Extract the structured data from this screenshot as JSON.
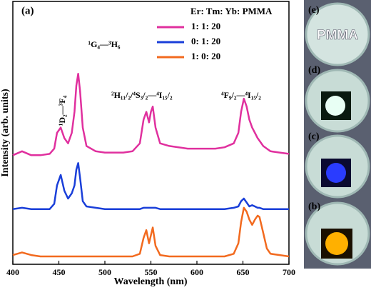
{
  "chart_data": {
    "type": "line",
    "panel_label": "(a)",
    "xlabel": "Wavelength (nm)",
    "ylabel": "Intensity (arb. units)",
    "xlim": [
      400,
      700
    ],
    "xticks": [
      400,
      450,
      500,
      550,
      600,
      650,
      700
    ],
    "ylim": [
      0,
      100
    ],
    "legend_title": "Er: Tm: Yb: PMMA",
    "legend": "upper-right",
    "annotations": [
      "¹D₂—³F₄",
      "¹G₄—³H₆",
      "²H₁₁/₂/⁴S₃/₂—⁴I₁₅/₂",
      "⁴F₉/₂—⁴I₁₅/₂"
    ],
    "photo_labels": [
      "(e)",
      "(d)",
      "(c)",
      "(b)"
    ],
    "photo_caption": "PMMA",
    "x": [
      400,
      410,
      420,
      430,
      440,
      445,
      448,
      452,
      456,
      460,
      464,
      467,
      469,
      471,
      473,
      476,
      480,
      490,
      500,
      510,
      520,
      530,
      538,
      542,
      545,
      548,
      550,
      552,
      555,
      560,
      570,
      580,
      590,
      600,
      610,
      620,
      630,
      640,
      645,
      648,
      651,
      654,
      657,
      660,
      663,
      666,
      668,
      672,
      676,
      680,
      690,
      700
    ],
    "series": [
      {
        "name": "1: 1: 20",
        "color": "#e0309e",
        "values": [
          41.5,
          43,
          41.5,
          41.5,
          42,
          44,
          50,
          52,
          48,
          46,
          50,
          58,
          68,
          72.5,
          66,
          52,
          45,
          43,
          42.5,
          42.5,
          42.5,
          43,
          46,
          55,
          58,
          54,
          58,
          60,
          52,
          46,
          45,
          44.5,
          44,
          44,
          44,
          44,
          44.5,
          46,
          50,
          58,
          63,
          60,
          55,
          52,
          50,
          48,
          47,
          45,
          44,
          43,
          42.5,
          42
        ]
      },
      {
        "name": "0: 1: 20",
        "color": "#1a3fd9",
        "values": [
          21,
          21.5,
          21,
          21,
          21,
          23,
          30,
          34,
          28,
          25,
          27,
          30,
          36,
          38.5,
          33,
          24,
          22,
          21.5,
          21,
          21,
          21,
          21,
          21,
          21.5,
          21.5,
          21.5,
          21.5,
          21.5,
          21.5,
          21,
          21,
          21,
          21,
          21,
          21,
          21,
          21,
          21.5,
          22,
          24,
          25,
          23.5,
          22,
          22.5,
          22,
          21.5,
          21.5,
          21,
          21,
          21,
          21,
          21
        ]
      },
      {
        "name": "1: 0: 20",
        "color": "#f26a1f",
        "values": [
          3.5,
          4.5,
          3.5,
          3,
          3,
          3,
          3,
          3,
          3,
          3,
          3,
          3,
          3,
          3,
          3,
          3,
          3,
          3,
          3,
          3,
          3,
          3,
          4,
          10,
          13,
          8,
          11,
          14,
          7,
          3.5,
          3,
          3,
          3,
          3,
          3,
          3,
          3,
          4,
          8,
          16,
          21.5,
          20,
          17,
          15,
          17,
          18.5,
          18,
          12,
          6,
          4,
          3.5,
          3
        ]
      }
    ]
  }
}
